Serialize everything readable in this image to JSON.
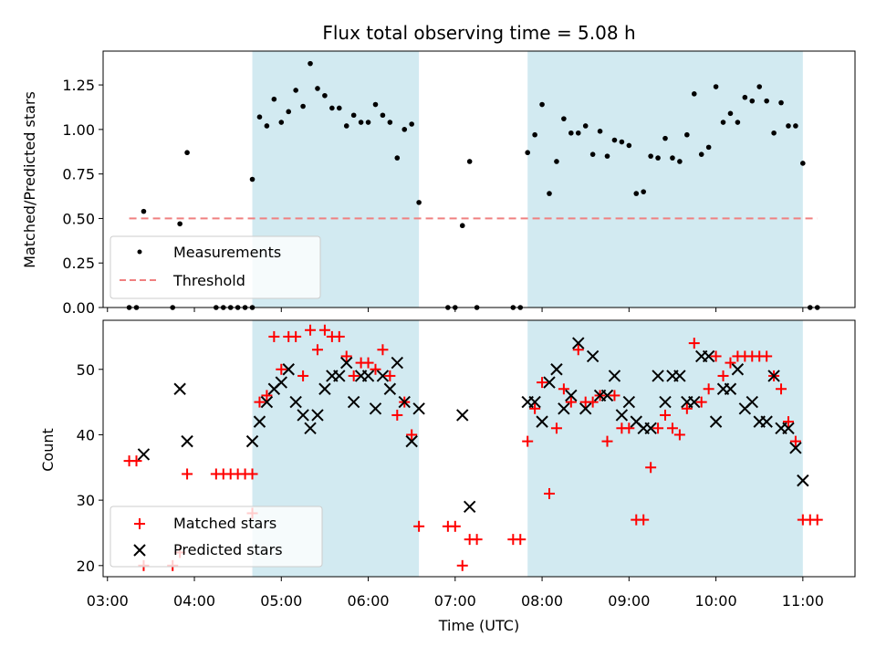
{
  "chart_data": [
    {
      "type": "scatter",
      "title": "Flux total observing time = 5.08 h",
      "xlabel": "",
      "ylabel": "Matched/Predicted stars",
      "ylim": [
        0,
        1.44
      ],
      "yticks": [
        "0.00",
        "0.25",
        "0.50",
        "0.75",
        "1.00",
        "1.25"
      ],
      "xlim_hours": [
        2.95,
        11.6
      ],
      "shaded_intervals": [
        [
          "04:40",
          "06:35"
        ],
        [
          "07:50",
          "11:00"
        ]
      ],
      "shade_color": "#add8e6",
      "legend": {
        "location": "lower-left",
        "entries": [
          "Measurements",
          "Threshold"
        ]
      },
      "series": [
        {
          "name": "Measurements",
          "marker": "dot",
          "color": "#000000",
          "points": [
            [
              "03:15",
              0
            ],
            [
              "03:20",
              0
            ],
            [
              "03:25",
              0.54
            ],
            [
              "03:45",
              0
            ],
            [
              "03:50",
              0.47
            ],
            [
              "03:55",
              0.87
            ],
            [
              "04:15",
              0
            ],
            [
              "04:20",
              0
            ],
            [
              "04:25",
              0
            ],
            [
              "04:30",
              0
            ],
            [
              "04:35",
              0
            ],
            [
              "04:40",
              0
            ],
            [
              "04:40",
              0.72
            ],
            [
              "04:45",
              1.07
            ],
            [
              "04:50",
              1.02
            ],
            [
              "04:55",
              1.17
            ],
            [
              "05:00",
              1.04
            ],
            [
              "05:05",
              1.1
            ],
            [
              "05:10",
              1.22
            ],
            [
              "05:15",
              1.13
            ],
            [
              "05:20",
              1.37
            ],
            [
              "05:25",
              1.23
            ],
            [
              "05:30",
              1.19
            ],
            [
              "05:35",
              1.12
            ],
            [
              "05:40",
              1.12
            ],
            [
              "05:45",
              1.02
            ],
            [
              "05:50",
              1.08
            ],
            [
              "05:55",
              1.04
            ],
            [
              "06:00",
              1.04
            ],
            [
              "06:05",
              1.14
            ],
            [
              "06:10",
              1.08
            ],
            [
              "06:15",
              1.04
            ],
            [
              "06:20",
              0.84
            ],
            [
              "06:25",
              1.0
            ],
            [
              "06:30",
              1.03
            ],
            [
              "06:35",
              0.59
            ],
            [
              "06:55",
              0
            ],
            [
              "07:00",
              0
            ],
            [
              "07:05",
              0.46
            ],
            [
              "07:10",
              0.82
            ],
            [
              "07:15",
              0
            ],
            [
              "07:40",
              0
            ],
            [
              "07:45",
              0
            ],
            [
              "07:50",
              0.87
            ],
            [
              "07:55",
              0.97
            ],
            [
              "08:00",
              1.14
            ],
            [
              "08:05",
              0.64
            ],
            [
              "08:10",
              0.82
            ],
            [
              "08:15",
              1.06
            ],
            [
              "08:20",
              0.98
            ],
            [
              "08:25",
              0.98
            ],
            [
              "08:30",
              1.02
            ],
            [
              "08:35",
              0.86
            ],
            [
              "08:40",
              0.99
            ],
            [
              "08:45",
              0.85
            ],
            [
              "08:50",
              0.94
            ],
            [
              "08:55",
              0.93
            ],
            [
              "09:00",
              0.91
            ],
            [
              "09:05",
              0.64
            ],
            [
              "09:10",
              0.65
            ],
            [
              "09:15",
              0.85
            ],
            [
              "09:20",
              0.84
            ],
            [
              "09:25",
              0.95
            ],
            [
              "09:30",
              0.84
            ],
            [
              "09:35",
              0.82
            ],
            [
              "09:40",
              0.97
            ],
            [
              "09:45",
              1.2
            ],
            [
              "09:50",
              0.86
            ],
            [
              "09:55",
              0.9
            ],
            [
              "10:00",
              1.24
            ],
            [
              "10:05",
              1.04
            ],
            [
              "10:10",
              1.09
            ],
            [
              "10:15",
              1.04
            ],
            [
              "10:20",
              1.18
            ],
            [
              "10:25",
              1.16
            ],
            [
              "10:30",
              1.24
            ],
            [
              "10:35",
              1.16
            ],
            [
              "10:40",
              0.98
            ],
            [
              "10:45",
              1.15
            ],
            [
              "10:50",
              1.02
            ],
            [
              "10:55",
              1.02
            ],
            [
              "11:00",
              0.81
            ],
            [
              "11:05",
              0
            ],
            [
              "11:10",
              0
            ]
          ]
        },
        {
          "name": "Threshold",
          "type": "line",
          "style": "dashed",
          "color": "#f08080",
          "points": [
            [
              "03:15",
              0.5
            ],
            [
              "11:10",
              0.5
            ]
          ]
        }
      ]
    },
    {
      "type": "scatter",
      "title": "",
      "xlabel": "Time (UTC)",
      "ylabel": "Count",
      "ylim": [
        18.3,
        57.5
      ],
      "yticks": [
        "20",
        "30",
        "40",
        "50"
      ],
      "xticks": [
        "03:00",
        "04:00",
        "05:00",
        "06:00",
        "07:00",
        "08:00",
        "09:00",
        "10:00",
        "11:00"
      ],
      "xlim_hours": [
        2.95,
        11.6
      ],
      "shaded_intervals": [
        [
          "04:40",
          "06:35"
        ],
        [
          "07:50",
          "11:00"
        ]
      ],
      "shade_color": "#add8e6",
      "legend": {
        "location": "lower-left",
        "entries": [
          "Matched stars",
          "Predicted stars"
        ]
      },
      "series": [
        {
          "name": "Matched stars",
          "marker": "plus",
          "color": "#ff0000",
          "points": [
            [
              "03:15",
              36
            ],
            [
              "03:20",
              36
            ],
            [
              "03:25",
              20
            ],
            [
              "03:45",
              20
            ],
            [
              "03:50",
              22
            ],
            [
              "03:55",
              34
            ],
            [
              "04:15",
              34
            ],
            [
              "04:20",
              34
            ],
            [
              "04:25",
              34
            ],
            [
              "04:30",
              34
            ],
            [
              "04:35",
              34
            ],
            [
              "04:40",
              34
            ],
            [
              "04:40",
              28
            ],
            [
              "04:45",
              45
            ],
            [
              "04:50",
              46
            ],
            [
              "04:55",
              55
            ],
            [
              "05:00",
              50
            ],
            [
              "05:05",
              55
            ],
            [
              "05:10",
              55
            ],
            [
              "05:15",
              49
            ],
            [
              "05:20",
              56
            ],
            [
              "05:25",
              53
            ],
            [
              "05:30",
              56
            ],
            [
              "05:35",
              55
            ],
            [
              "05:40",
              55
            ],
            [
              "05:45",
              52
            ],
            [
              "05:50",
              49
            ],
            [
              "05:55",
              51
            ],
            [
              "06:00",
              51
            ],
            [
              "06:05",
              50
            ],
            [
              "06:10",
              53
            ],
            [
              "06:15",
              49
            ],
            [
              "06:20",
              43
            ],
            [
              "06:25",
              45
            ],
            [
              "06:30",
              40
            ],
            [
              "06:35",
              26
            ],
            [
              "06:55",
              26
            ],
            [
              "07:00",
              26
            ],
            [
              "07:05",
              20
            ],
            [
              "07:10",
              24
            ],
            [
              "07:15",
              24
            ],
            [
              "07:40",
              24
            ],
            [
              "07:45",
              24
            ],
            [
              "07:50",
              39
            ],
            [
              "07:55",
              44
            ],
            [
              "08:00",
              48
            ],
            [
              "08:05",
              31
            ],
            [
              "08:10",
              41
            ],
            [
              "08:15",
              47
            ],
            [
              "08:20",
              45
            ],
            [
              "08:25",
              53
            ],
            [
              "08:30",
              45
            ],
            [
              "08:35",
              45
            ],
            [
              "08:40",
              46
            ],
            [
              "08:45",
              39
            ],
            [
              "08:50",
              46
            ],
            [
              "08:55",
              41
            ],
            [
              "09:00",
              41
            ],
            [
              "09:05",
              27
            ],
            [
              "09:10",
              27
            ],
            [
              "09:15",
              35
            ],
            [
              "09:20",
              41
            ],
            [
              "09:25",
              43
            ],
            [
              "09:30",
              41
            ],
            [
              "09:35",
              40
            ],
            [
              "09:40",
              44
            ],
            [
              "09:45",
              54
            ],
            [
              "09:50",
              45
            ],
            [
              "09:55",
              47
            ],
            [
              "10:00",
              52
            ],
            [
              "10:05",
              49
            ],
            [
              "10:10",
              51
            ],
            [
              "10:15",
              52
            ],
            [
              "10:20",
              52
            ],
            [
              "10:25",
              52
            ],
            [
              "10:30",
              52
            ],
            [
              "10:35",
              52
            ],
            [
              "10:40",
              49
            ],
            [
              "10:45",
              47
            ],
            [
              "10:50",
              42
            ],
            [
              "10:55",
              39
            ],
            [
              "11:00",
              27
            ],
            [
              "11:05",
              27
            ],
            [
              "11:10",
              27
            ]
          ]
        },
        {
          "name": "Predicted stars",
          "marker": "x",
          "color": "#000000",
          "points": [
            [
              "03:25",
              37
            ],
            [
              "03:50",
              47
            ],
            [
              "03:55",
              39
            ],
            [
              "04:40",
              39
            ],
            [
              "04:45",
              42
            ],
            [
              "04:50",
              45
            ],
            [
              "04:55",
              47
            ],
            [
              "05:00",
              48
            ],
            [
              "05:05",
              50
            ],
            [
              "05:10",
              45
            ],
            [
              "05:15",
              43
            ],
            [
              "05:20",
              41
            ],
            [
              "05:25",
              43
            ],
            [
              "05:30",
              47
            ],
            [
              "05:35",
              49
            ],
            [
              "05:40",
              49
            ],
            [
              "05:45",
              51
            ],
            [
              "05:50",
              45
            ],
            [
              "05:55",
              49
            ],
            [
              "06:00",
              49
            ],
            [
              "06:05",
              44
            ],
            [
              "06:10",
              49
            ],
            [
              "06:15",
              47
            ],
            [
              "06:20",
              51
            ],
            [
              "06:25",
              45
            ],
            [
              "06:30",
              39
            ],
            [
              "06:35",
              44
            ],
            [
              "07:05",
              43
            ],
            [
              "07:10",
              29
            ],
            [
              "07:50",
              45
            ],
            [
              "07:55",
              45
            ],
            [
              "08:00",
              42
            ],
            [
              "08:05",
              48
            ],
            [
              "08:10",
              50
            ],
            [
              "08:15",
              44
            ],
            [
              "08:20",
              46
            ],
            [
              "08:25",
              54
            ],
            [
              "08:30",
              44
            ],
            [
              "08:35",
              52
            ],
            [
              "08:40",
              46
            ],
            [
              "08:45",
              46
            ],
            [
              "08:50",
              49
            ],
            [
              "08:55",
              43
            ],
            [
              "09:00",
              45
            ],
            [
              "09:05",
              42
            ],
            [
              "09:10",
              41
            ],
            [
              "09:15",
              41
            ],
            [
              "09:20",
              49
            ],
            [
              "09:25",
              45
            ],
            [
              "09:30",
              49
            ],
            [
              "09:35",
              49
            ],
            [
              "09:40",
              45
            ],
            [
              "09:45",
              45
            ],
            [
              "09:50",
              52
            ],
            [
              "09:55",
              52
            ],
            [
              "10:00",
              42
            ],
            [
              "10:05",
              47
            ],
            [
              "10:10",
              47
            ],
            [
              "10:15",
              50
            ],
            [
              "10:20",
              44
            ],
            [
              "10:25",
              45
            ],
            [
              "10:30",
              42
            ],
            [
              "10:35",
              42
            ],
            [
              "10:40",
              49
            ],
            [
              "10:45",
              41
            ],
            [
              "10:50",
              41
            ],
            [
              "10:55",
              38
            ],
            [
              "11:00",
              33
            ]
          ]
        }
      ]
    }
  ]
}
